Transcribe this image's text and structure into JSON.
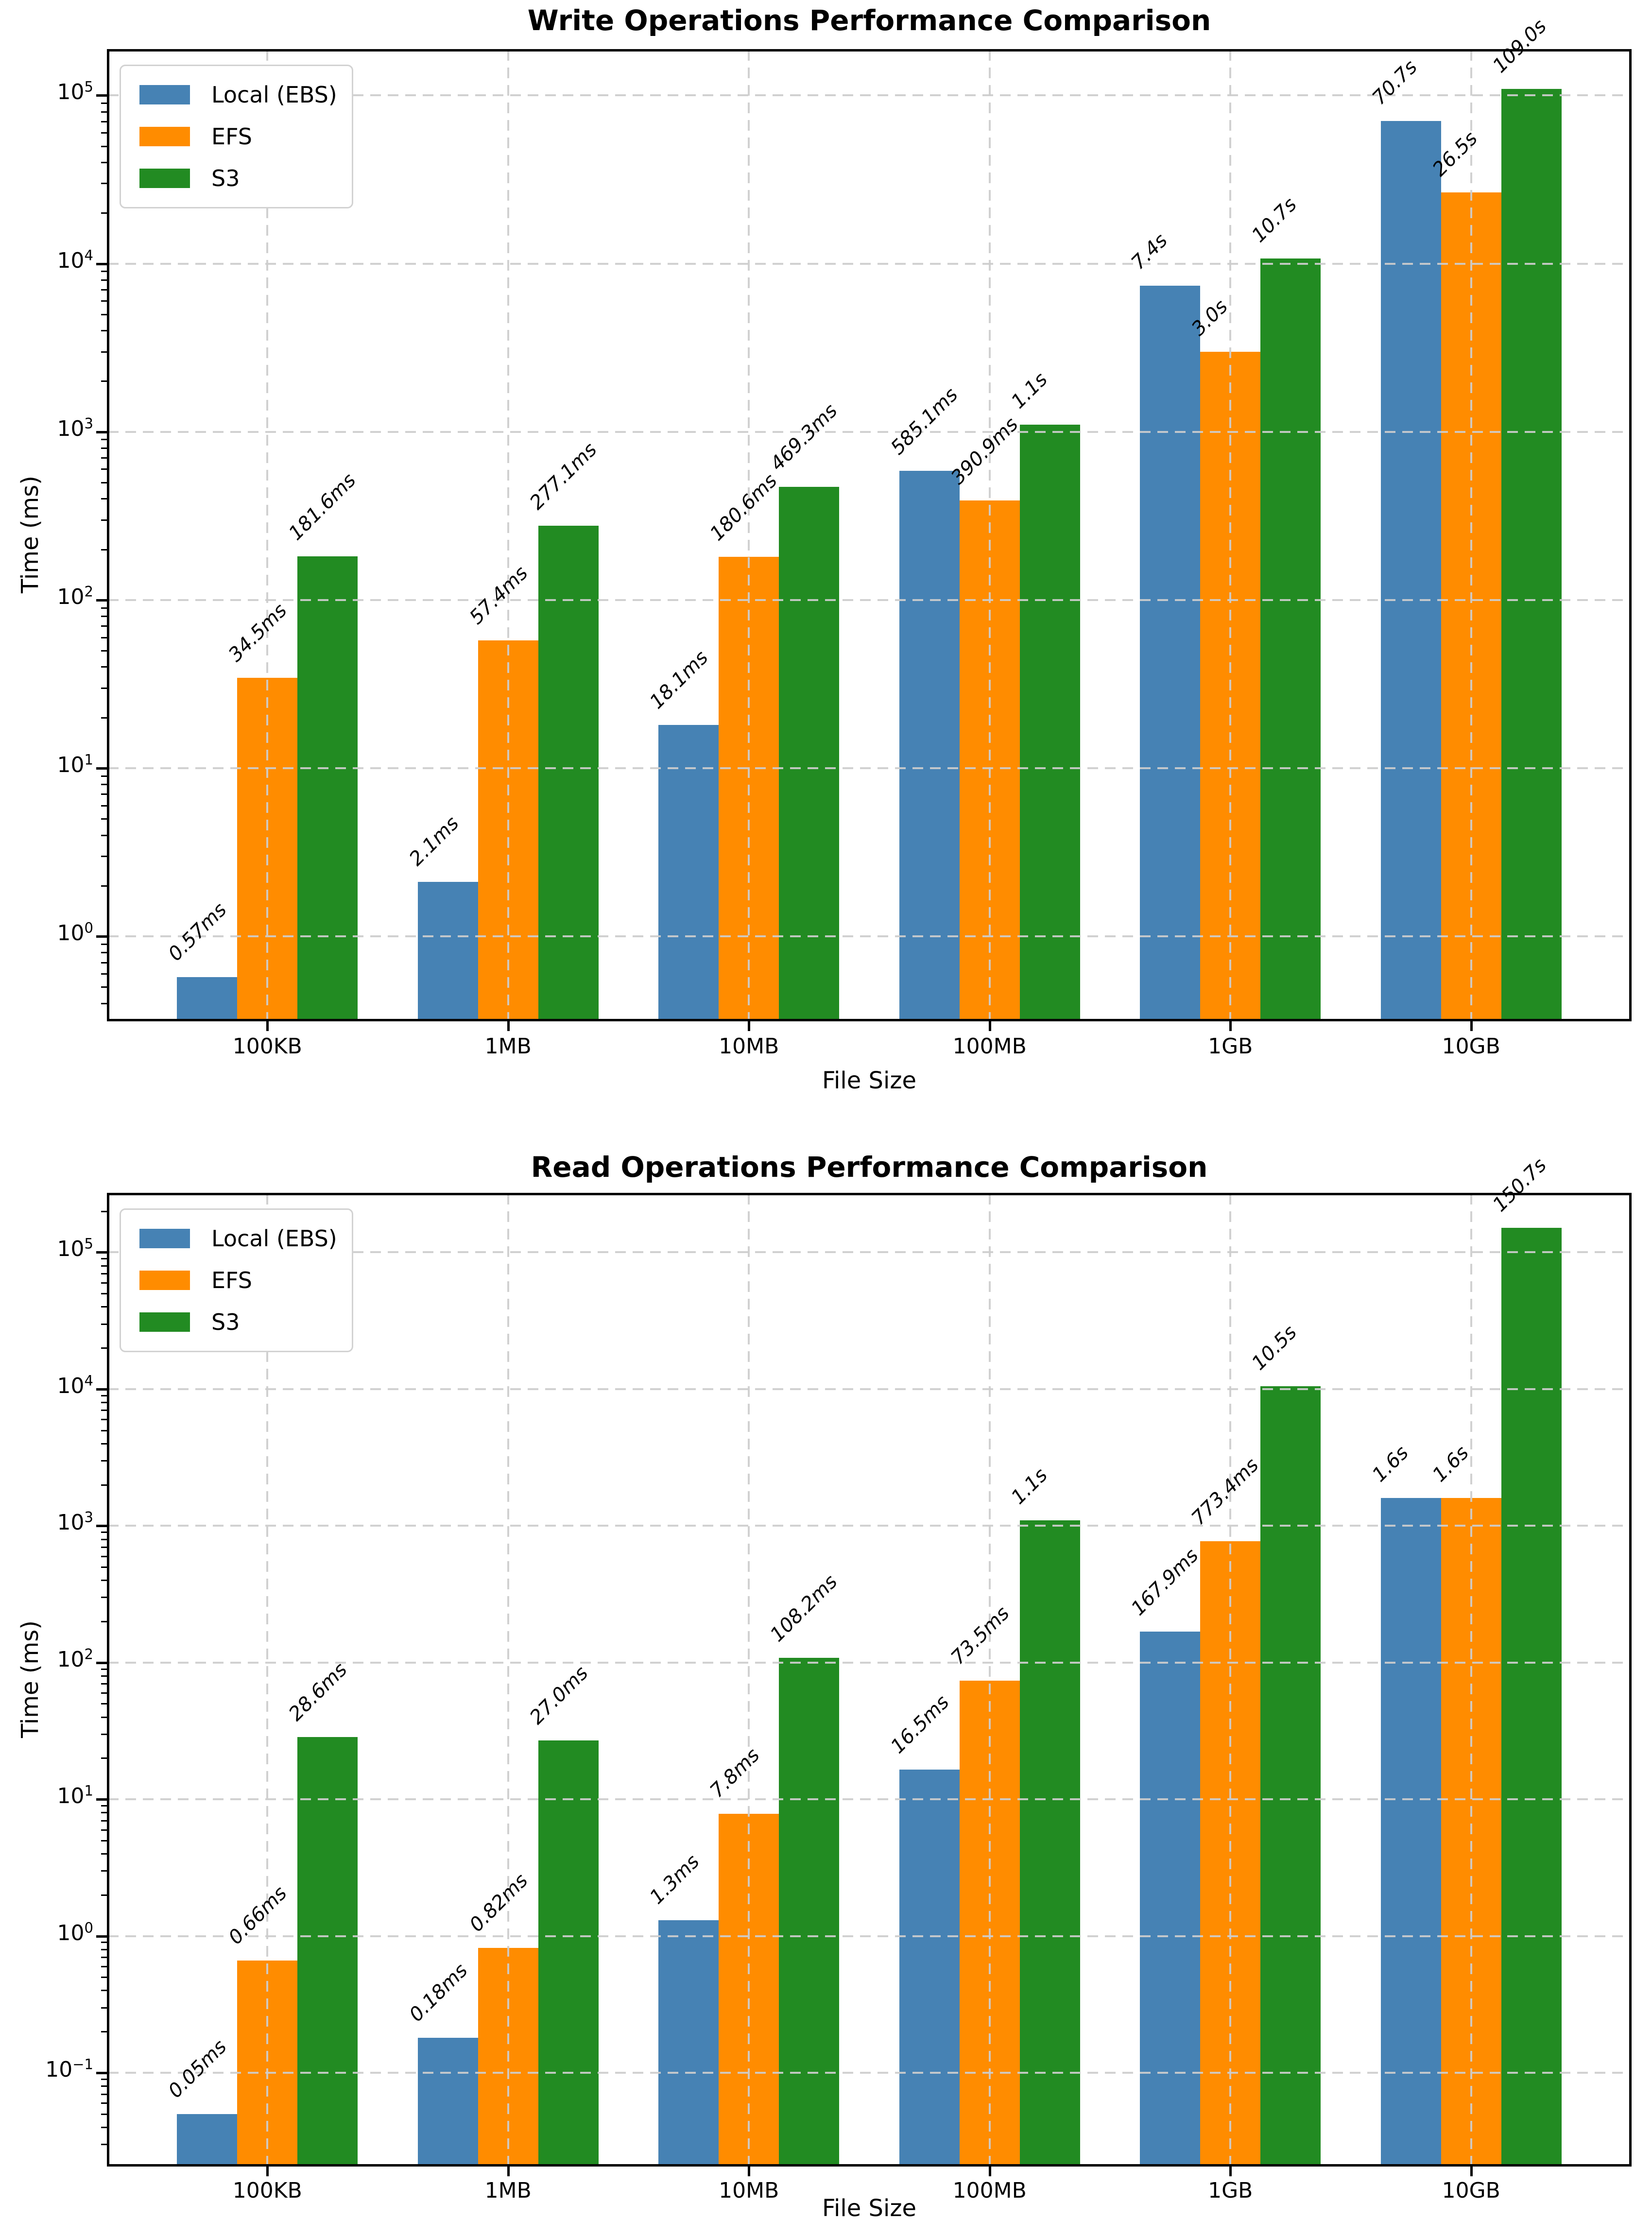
{
  "page": {
    "background": "#ffffff"
  },
  "chart_data": [
    {
      "type": "bar",
      "title": "Write Operations Performance Comparison",
      "xlabel": "File Size",
      "ylabel": "Time (ms)",
      "y_scale": "log",
      "y_unit": "ms",
      "grid": "dashed major gridlines, both axes, drawn over bars",
      "legend_position": "upper-left",
      "categories": [
        "100KB",
        "1MB",
        "10MB",
        "100MB",
        "1GB",
        "10GB"
      ],
      "y_tick_exponents": [
        0,
        1,
        2,
        3,
        4,
        5
      ],
      "y_axis_range_log10": [
        -0.5,
        5.27
      ],
      "series": [
        {
          "name": "Local (EBS)",
          "color": "#4682B4",
          "values_ms": [
            0.57,
            2.1,
            18.1,
            585.1,
            7400,
            70700
          ],
          "labels": [
            "0.57ms",
            "2.1ms",
            "18.1ms",
            "585.1ms",
            "7.4s",
            "70.7s"
          ]
        },
        {
          "name": "EFS",
          "color": "#FF8C00",
          "values_ms": [
            34.5,
            57.4,
            180.6,
            390.9,
            3000,
            26500
          ],
          "labels": [
            "34.5ms",
            "57.4ms",
            "180.6ms",
            "390.9ms",
            "3.0s",
            "26.5s"
          ]
        },
        {
          "name": "S3",
          "color": "#228B22",
          "values_ms": [
            181.6,
            277.1,
            469.3,
            1100,
            10700,
            109000
          ],
          "labels": [
            "181.6ms",
            "277.1ms",
            "469.3ms",
            "1.1s",
            "10.7s",
            "109.0s"
          ]
        }
      ]
    },
    {
      "type": "bar",
      "title": "Read Operations Performance Comparison",
      "xlabel": "File Size",
      "ylabel": "Time (ms)",
      "y_scale": "log",
      "y_unit": "ms",
      "grid": "dashed major gridlines, both axes, drawn over bars",
      "legend_position": "upper-left",
      "categories": [
        "100KB",
        "1MB",
        "10MB",
        "100MB",
        "1GB",
        "10GB"
      ],
      "y_tick_exponents": [
        -1,
        0,
        1,
        2,
        3,
        4,
        5
      ],
      "y_axis_range_log10": [
        -1.679,
        5.428
      ],
      "series": [
        {
          "name": "Local (EBS)",
          "color": "#4682B4",
          "values_ms": [
            0.05,
            0.18,
            1.3,
            16.5,
            167.9,
            1600
          ],
          "labels": [
            "0.05ms",
            "0.18ms",
            "1.3ms",
            "16.5ms",
            "167.9ms",
            "1.6s"
          ]
        },
        {
          "name": "EFS",
          "color": "#FF8C00",
          "values_ms": [
            0.66,
            0.82,
            7.8,
            73.5,
            773.4,
            1600
          ],
          "labels": [
            "0.66ms",
            "0.82ms",
            "7.8ms",
            "73.5ms",
            "773.4ms",
            "1.6s"
          ]
        },
        {
          "name": "S3",
          "color": "#228B22",
          "values_ms": [
            28.6,
            27.0,
            108.2,
            1100,
            10500,
            150700
          ],
          "labels": [
            "28.6ms",
            "27.0ms",
            "108.2ms",
            "1.1s",
            "10.5s",
            "150.7s"
          ]
        }
      ]
    }
  ]
}
